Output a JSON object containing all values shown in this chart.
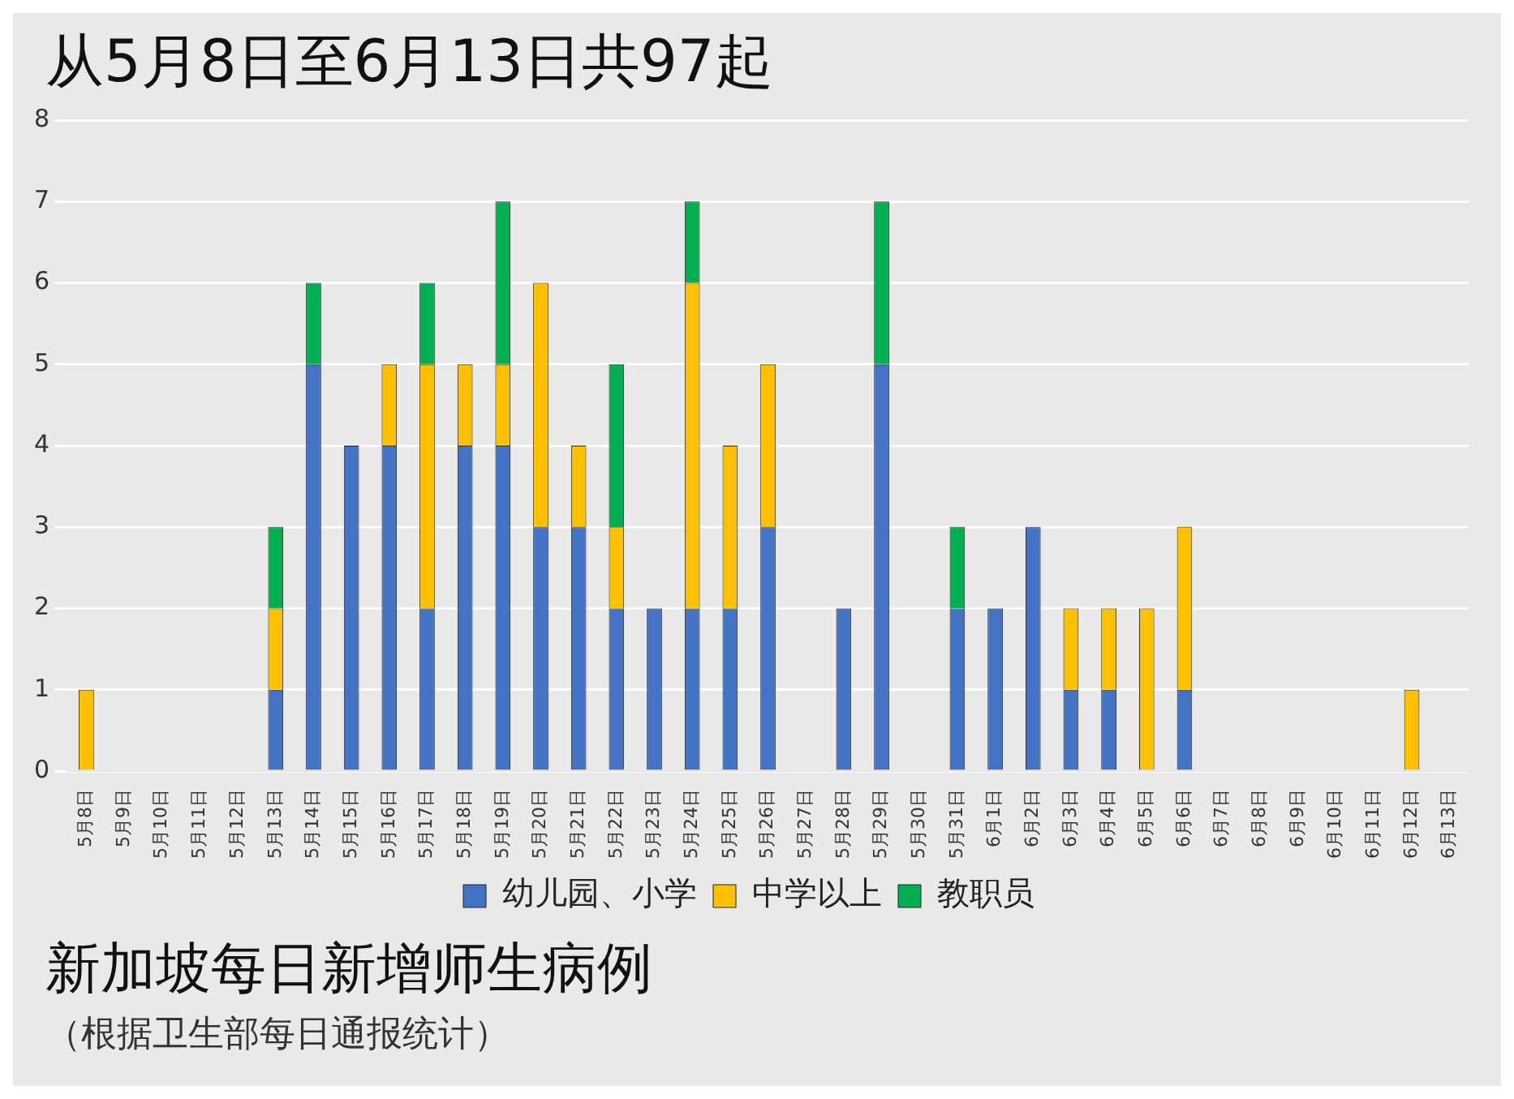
{
  "chart_data": {
    "type": "bar",
    "title": "从5月8日至6月13日共97起",
    "subtitle": "新加坡每日新增师生病例",
    "annotations": [
      "（根据卫生部每日通报统计）"
    ],
    "categories": [
      "5月8日",
      "5月9日",
      "5月10日",
      "5月11日",
      "5月12日",
      "5月13日",
      "5月14日",
      "5月15日",
      "5月16日",
      "5月17日",
      "5月18日",
      "5月19日",
      "5月20日",
      "5月21日",
      "5月22日",
      "5月23日",
      "5月24日",
      "5月25日",
      "5月26日",
      "5月27日",
      "5月28日",
      "5月29日",
      "5月30日",
      "5月31日",
      "6月1日",
      "6月2日",
      "6月3日",
      "6月4日",
      "6月5日",
      "6月6日",
      "6月7日",
      "6月8日",
      "6月9日",
      "6月10日",
      "6月11日",
      "6月12日",
      "6月13日"
    ],
    "series": [
      {
        "name": "幼儿园、小学",
        "color": "#4472c4",
        "values": [
          0,
          0,
          0,
          0,
          0,
          1,
          5,
          4,
          4,
          2,
          4,
          4,
          3,
          3,
          2,
          2,
          2,
          2,
          3,
          0,
          2,
          5,
          0,
          2,
          2,
          3,
          1,
          1,
          0,
          1,
          0,
          0,
          0,
          0,
          0,
          0,
          0
        ]
      },
      {
        "name": "中学以上",
        "color": "#ffc000",
        "values": [
          1,
          0,
          0,
          0,
          0,
          1,
          0,
          0,
          1,
          3,
          1,
          1,
          3,
          1,
          1,
          0,
          4,
          2,
          2,
          0,
          0,
          0,
          0,
          0,
          0,
          0,
          1,
          1,
          2,
          2,
          0,
          0,
          0,
          0,
          0,
          1,
          0
        ]
      },
      {
        "name": "教职员",
        "color": "#00b050",
        "values": [
          0,
          0,
          0,
          0,
          0,
          1,
          1,
          0,
          0,
          1,
          0,
          2,
          0,
          0,
          2,
          0,
          1,
          0,
          0,
          0,
          0,
          2,
          0,
          1,
          0,
          0,
          0,
          0,
          0,
          0,
          0,
          0,
          0,
          0,
          0,
          0,
          0
        ]
      }
    ],
    "stacked": true,
    "ylim": [
      0,
      8
    ],
    "yticks": [
      0,
      1,
      2,
      3,
      4,
      5,
      6,
      7,
      8
    ],
    "grid": "y",
    "legend": "bottom"
  }
}
